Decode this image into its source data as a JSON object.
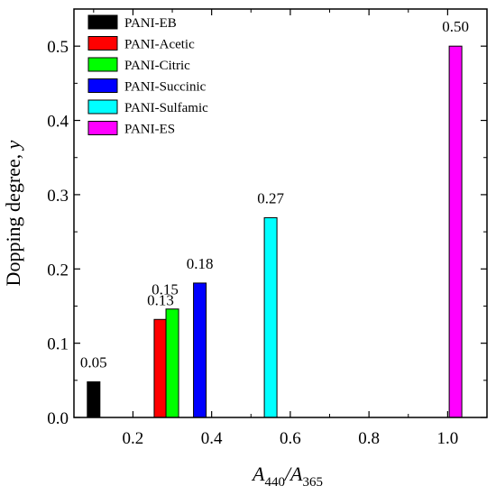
{
  "chart_data": {
    "type": "bar",
    "xlabel": {
      "main": "A",
      "sub1": "440",
      "sep": "/A",
      "sub2": "365"
    },
    "ylabel": {
      "text": "Dopping degree, ",
      "var": "y"
    },
    "xlim": [
      0.05,
      1.1
    ],
    "ylim": [
      0,
      0.55
    ],
    "xticks": [
      0.2,
      0.4,
      0.6,
      0.8,
      1.0
    ],
    "xtick_labels": [
      "0.2",
      "0.4",
      "0.6",
      "0.8",
      "1.0"
    ],
    "yticks": [
      0.0,
      0.1,
      0.2,
      0.3,
      0.4,
      0.5
    ],
    "ytick_labels": [
      "0.0",
      "0.1",
      "0.2",
      "0.3",
      "0.4",
      "0.5"
    ],
    "legend_position": "top-left",
    "series": [
      {
        "name": "PANI-EB",
        "x": 0.1,
        "value": 0.048,
        "label": "0.05",
        "color": "#000000"
      },
      {
        "name": "PANI-Acetic",
        "x": 0.27,
        "value": 0.132,
        "label": "0.13",
        "color": "#ff0000"
      },
      {
        "name": "PANI-Citric",
        "x": 0.3,
        "value": 0.146,
        "label": "0.15",
        "color": "#00ff00"
      },
      {
        "name": "PANI-Succinic",
        "x": 0.37,
        "value": 0.181,
        "label": "0.18",
        "color": "#0000ff"
      },
      {
        "name": "PANI-Sulfamic",
        "x": 0.55,
        "value": 0.269,
        "label": "0.27",
        "color": "#00ffff"
      },
      {
        "name": "PANI-ES",
        "x": 1.02,
        "value": 0.5,
        "label": "0.50",
        "color": "#ff00ff"
      }
    ]
  }
}
